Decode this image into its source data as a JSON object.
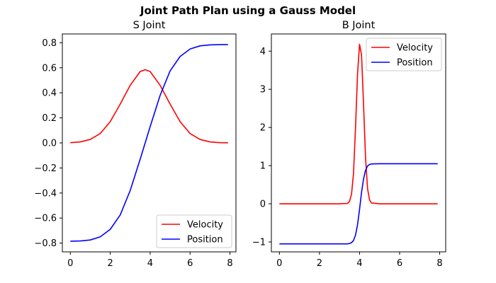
{
  "figure_title": "Joint Path Plan using a Gauss Model",
  "chart_data": [
    {
      "type": "line",
      "title": "S Joint",
      "xlabel": "",
      "ylabel": "",
      "xlim": [
        -0.4,
        8.3
      ],
      "ylim": [
        -0.87,
        0.87
      ],
      "xticks": [
        0,
        2,
        4,
        6,
        8
      ],
      "xtick_labels": [
        "0",
        "2",
        "4",
        "6",
        "8"
      ],
      "yticks": [
        -0.8,
        -0.6,
        -0.4,
        -0.2,
        0.0,
        0.2,
        0.4,
        0.6,
        0.8
      ],
      "ytick_labels": [
        "−0.8",
        "−0.6",
        "−0.4",
        "−0.2",
        "0.0",
        "0.2",
        "0.4",
        "0.6",
        "0.8"
      ],
      "grid": false,
      "legend_position": "lower-right",
      "series": [
        {
          "name": "Velocity",
          "color": "#ff0000",
          "x": [
            0,
            0.5,
            1.0,
            1.5,
            2.0,
            2.5,
            3.0,
            3.5,
            3.75,
            4.0,
            4.5,
            5.0,
            5.5,
            6.0,
            6.5,
            7.0,
            7.5,
            7.9
          ],
          "y": [
            0.002,
            0.008,
            0.028,
            0.075,
            0.17,
            0.31,
            0.46,
            0.57,
            0.585,
            0.57,
            0.46,
            0.31,
            0.17,
            0.075,
            0.028,
            0.008,
            0.002,
            0.001
          ]
        },
        {
          "name": "Position",
          "color": "#0000ff",
          "x": [
            0,
            0.5,
            1.0,
            1.5,
            2.0,
            2.5,
            3.0,
            3.5,
            3.75,
            4.0,
            4.5,
            5.0,
            5.5,
            6.0,
            6.5,
            7.0,
            7.5,
            7.9
          ],
          "y": [
            -0.785,
            -0.783,
            -0.775,
            -0.75,
            -0.69,
            -0.575,
            -0.38,
            -0.13,
            0.0,
            0.13,
            0.38,
            0.575,
            0.69,
            0.75,
            0.775,
            0.783,
            0.785,
            0.785
          ]
        }
      ]
    },
    {
      "type": "line",
      "title": "B Joint",
      "xlabel": "",
      "ylabel": "",
      "xlim": [
        -0.4,
        8.3
      ],
      "ylim": [
        -1.26,
        4.45
      ],
      "xticks": [
        0,
        2,
        4,
        6,
        8
      ],
      "xtick_labels": [
        "0",
        "2",
        "4",
        "6",
        "8"
      ],
      "yticks": [
        -1,
        0,
        1,
        2,
        3,
        4
      ],
      "ytick_labels": [
        "−1",
        "0",
        "1",
        "2",
        "3",
        "4"
      ],
      "grid": false,
      "legend_position": "upper-right",
      "series": [
        {
          "name": "Velocity",
          "color": "#ff0000",
          "x": [
            0,
            1,
            2,
            3,
            3.4,
            3.5,
            3.6,
            3.7,
            3.8,
            3.9,
            4.0,
            4.1,
            4.2,
            4.3,
            4.4,
            4.5,
            4.6,
            5,
            6,
            7,
            7.9
          ],
          "y": [
            0,
            0,
            0,
            0,
            0.01,
            0.06,
            0.25,
            0.8,
            2.0,
            3.4,
            4.18,
            3.9,
            2.6,
            1.2,
            0.4,
            0.1,
            0.02,
            0,
            0,
            0,
            0
          ]
        },
        {
          "name": "Position",
          "color": "#0000ff",
          "x": [
            0,
            1,
            2,
            3,
            3.4,
            3.5,
            3.6,
            3.7,
            3.8,
            3.9,
            4.0,
            4.1,
            4.2,
            4.3,
            4.4,
            4.5,
            4.6,
            5,
            6,
            7,
            7.9
          ],
          "y": [
            -1.05,
            -1.05,
            -1.05,
            -1.05,
            -1.05,
            -1.04,
            -1.02,
            -0.96,
            -0.82,
            -0.55,
            -0.15,
            0.3,
            0.65,
            0.88,
            0.99,
            1.03,
            1.045,
            1.05,
            1.05,
            1.05,
            1.05
          ]
        }
      ]
    }
  ]
}
